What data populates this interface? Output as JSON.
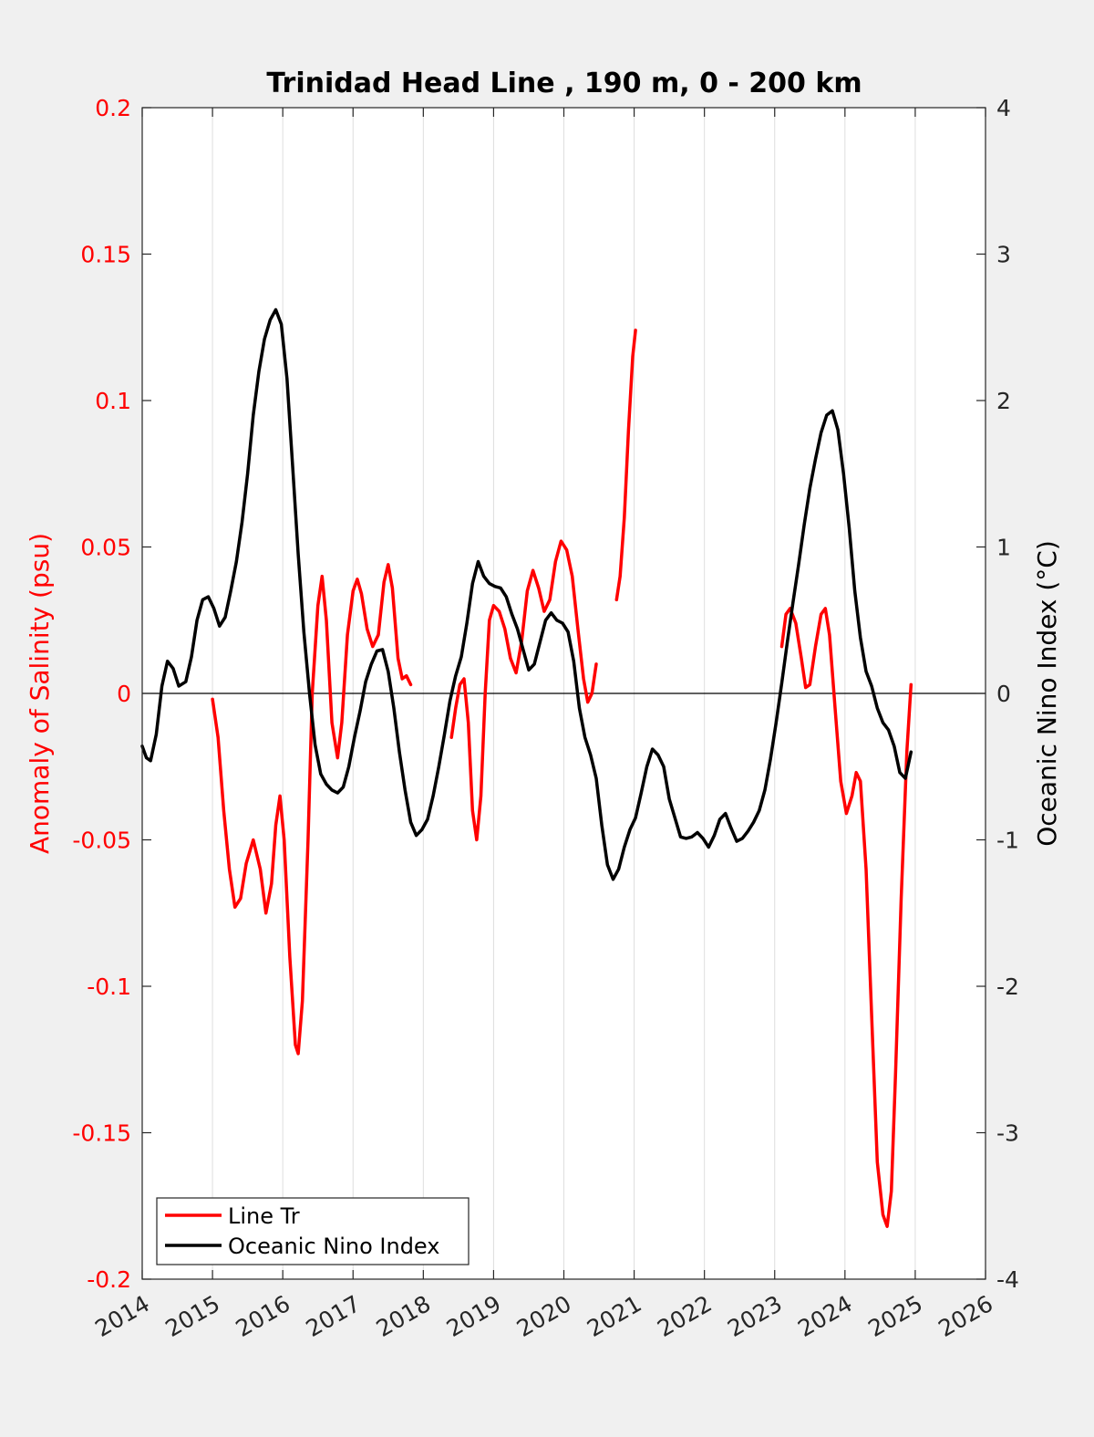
{
  "chart_data": {
    "type": "line",
    "title": "Trinidad Head Line , 190 m, 0 - 200 km",
    "ylabel_left": "Anomaly of Salinity (psu)",
    "ylabel_right": "Oceanic Nino Index (°C)",
    "xlim": [
      2014,
      2026
    ],
    "ylim_left": [
      -0.2,
      0.2
    ],
    "ylim_right": [
      -4,
      4
    ],
    "x_ticks": [
      "2014",
      "2015",
      "2016",
      "2017",
      "2018",
      "2019",
      "2020",
      "2021",
      "2022",
      "2023",
      "2024",
      "2025",
      "2026"
    ],
    "y_ticks_left": [
      "0.2",
      "0.15",
      "0.1",
      "0.05",
      "0",
      "-0.05",
      "-0.1",
      "-0.15",
      "-0.2"
    ],
    "y_ticks_right": [
      "4",
      "3",
      "2",
      "1",
      "0",
      "-1",
      "-2",
      "-3",
      "-4"
    ],
    "grid": "vertical",
    "zero_line": true,
    "legend_position": "bottom-left",
    "colors": {
      "left_axis": "#ff0000",
      "line_tr": "#ff0000",
      "oni": "#000000"
    },
    "series": [
      {
        "name": "Line Tr",
        "axis": "left",
        "color": "#ff0000",
        "segments": [
          [
            [
              2015.0,
              -0.002
            ],
            [
              2015.08,
              -0.015
            ],
            [
              2015.16,
              -0.04
            ],
            [
              2015.24,
              -0.06
            ],
            [
              2015.32,
              -0.073
            ],
            [
              2015.4,
              -0.07
            ],
            [
              2015.48,
              -0.058
            ],
            [
              2015.58,
              -0.05
            ],
            [
              2015.68,
              -0.06
            ],
            [
              2015.76,
              -0.075
            ],
            [
              2015.84,
              -0.065
            ],
            [
              2015.9,
              -0.045
            ],
            [
              2015.96,
              -0.035
            ],
            [
              2016.02,
              -0.05
            ],
            [
              2016.1,
              -0.09
            ],
            [
              2016.18,
              -0.12
            ],
            [
              2016.22,
              -0.123
            ],
            [
              2016.28,
              -0.105
            ],
            [
              2016.36,
              -0.05
            ],
            [
              2016.42,
              0.0
            ],
            [
              2016.5,
              0.03
            ],
            [
              2016.56,
              0.04
            ],
            [
              2016.62,
              0.025
            ],
            [
              2016.7,
              -0.01
            ],
            [
              2016.78,
              -0.022
            ],
            [
              2016.84,
              -0.01
            ],
            [
              2016.92,
              0.02
            ],
            [
              2017.0,
              0.035
            ],
            [
              2017.06,
              0.039
            ],
            [
              2017.12,
              0.034
            ],
            [
              2017.2,
              0.022
            ],
            [
              2017.28,
              0.016
            ],
            [
              2017.36,
              0.02
            ],
            [
              2017.44,
              0.038
            ],
            [
              2017.5,
              0.044
            ],
            [
              2017.56,
              0.036
            ],
            [
              2017.64,
              0.012
            ],
            [
              2017.7,
              0.005
            ],
            [
              2017.76,
              0.006
            ],
            [
              2017.82,
              0.003
            ]
          ],
          [
            [
              2018.4,
              -0.015
            ],
            [
              2018.46,
              -0.005
            ],
            [
              2018.52,
              0.003
            ],
            [
              2018.58,
              0.005
            ],
            [
              2018.64,
              -0.01
            ],
            [
              2018.7,
              -0.04
            ],
            [
              2018.76,
              -0.05
            ],
            [
              2018.82,
              -0.035
            ],
            [
              2018.88,
              0.0
            ],
            [
              2018.94,
              0.025
            ],
            [
              2019.0,
              0.03
            ],
            [
              2019.08,
              0.028
            ],
            [
              2019.16,
              0.022
            ],
            [
              2019.24,
              0.012
            ],
            [
              2019.32,
              0.007
            ],
            [
              2019.4,
              0.018
            ],
            [
              2019.48,
              0.035
            ],
            [
              2019.56,
              0.042
            ],
            [
              2019.64,
              0.036
            ],
            [
              2019.72,
              0.028
            ],
            [
              2019.8,
              0.032
            ],
            [
              2019.88,
              0.045
            ],
            [
              2019.96,
              0.052
            ],
            [
              2020.04,
              0.049
            ],
            [
              2020.12,
              0.04
            ],
            [
              2020.2,
              0.022
            ],
            [
              2020.28,
              0.005
            ],
            [
              2020.34,
              -0.003
            ],
            [
              2020.4,
              0.0
            ],
            [
              2020.46,
              0.01
            ]
          ],
          [
            [
              2020.75,
              0.032
            ],
            [
              2020.8,
              0.04
            ],
            [
              2020.86,
              0.06
            ],
            [
              2020.92,
              0.09
            ],
            [
              2020.98,
              0.115
            ],
            [
              2021.02,
              0.124
            ]
          ],
          [
            [
              2023.1,
              0.016
            ],
            [
              2023.16,
              0.027
            ],
            [
              2023.22,
              0.029
            ],
            [
              2023.3,
              0.024
            ],
            [
              2023.38,
              0.012
            ],
            [
              2023.44,
              0.002
            ],
            [
              2023.5,
              0.003
            ],
            [
              2023.58,
              0.016
            ],
            [
              2023.66,
              0.027
            ],
            [
              2023.72,
              0.029
            ],
            [
              2023.78,
              0.02
            ],
            [
              2023.86,
              -0.005
            ],
            [
              2023.94,
              -0.03
            ],
            [
              2024.02,
              -0.041
            ],
            [
              2024.1,
              -0.035
            ],
            [
              2024.16,
              -0.027
            ],
            [
              2024.22,
              -0.03
            ],
            [
              2024.3,
              -0.06
            ],
            [
              2024.38,
              -0.11
            ],
            [
              2024.46,
              -0.16
            ],
            [
              2024.54,
              -0.178
            ],
            [
              2024.6,
              -0.182
            ],
            [
              2024.66,
              -0.17
            ],
            [
              2024.72,
              -0.13
            ],
            [
              2024.8,
              -0.07
            ],
            [
              2024.88,
              -0.02
            ],
            [
              2024.94,
              0.003
            ]
          ]
        ]
      },
      {
        "name": "Oceanic Nino Index",
        "axis": "right",
        "color": "#000000",
        "segments": [
          [
            [
              2014.0,
              -0.36
            ],
            [
              2014.06,
              -0.44
            ],
            [
              2014.12,
              -0.46
            ],
            [
              2014.2,
              -0.28
            ],
            [
              2014.28,
              0.05
            ],
            [
              2014.36,
              0.22
            ],
            [
              2014.44,
              0.17
            ],
            [
              2014.52,
              0.05
            ],
            [
              2014.62,
              0.08
            ],
            [
              2014.7,
              0.25
            ],
            [
              2014.78,
              0.5
            ],
            [
              2014.86,
              0.64
            ],
            [
              2014.94,
              0.66
            ],
            [
              2015.02,
              0.58
            ],
            [
              2015.1,
              0.46
            ],
            [
              2015.18,
              0.52
            ],
            [
              2015.26,
              0.7
            ],
            [
              2015.34,
              0.9
            ],
            [
              2015.42,
              1.17
            ],
            [
              2015.5,
              1.5
            ],
            [
              2015.58,
              1.9
            ],
            [
              2015.66,
              2.2
            ],
            [
              2015.74,
              2.42
            ],
            [
              2015.82,
              2.55
            ],
            [
              2015.9,
              2.62
            ],
            [
              2015.98,
              2.52
            ],
            [
              2016.06,
              2.15
            ],
            [
              2016.14,
              1.55
            ],
            [
              2016.22,
              0.95
            ],
            [
              2016.3,
              0.42
            ],
            [
              2016.38,
              0.0
            ],
            [
              2016.46,
              -0.35
            ],
            [
              2016.54,
              -0.55
            ],
            [
              2016.62,
              -0.62
            ],
            [
              2016.7,
              -0.66
            ],
            [
              2016.78,
              -0.68
            ],
            [
              2016.86,
              -0.64
            ],
            [
              2016.94,
              -0.5
            ],
            [
              2017.02,
              -0.3
            ],
            [
              2017.1,
              -0.12
            ],
            [
              2017.18,
              0.08
            ],
            [
              2017.26,
              0.2
            ],
            [
              2017.34,
              0.29
            ],
            [
              2017.42,
              0.3
            ],
            [
              2017.5,
              0.15
            ],
            [
              2017.58,
              -0.1
            ],
            [
              2017.66,
              -0.4
            ],
            [
              2017.74,
              -0.66
            ],
            [
              2017.82,
              -0.88
            ],
            [
              2017.9,
              -0.97
            ],
            [
              2017.98,
              -0.93
            ],
            [
              2018.06,
              -0.86
            ],
            [
              2018.14,
              -0.7
            ],
            [
              2018.22,
              -0.5
            ],
            [
              2018.3,
              -0.28
            ],
            [
              2018.38,
              -0.05
            ],
            [
              2018.46,
              0.12
            ],
            [
              2018.54,
              0.25
            ],
            [
              2018.62,
              0.48
            ],
            [
              2018.7,
              0.75
            ],
            [
              2018.78,
              0.9
            ],
            [
              2018.86,
              0.8
            ],
            [
              2018.94,
              0.75
            ],
            [
              2019.02,
              0.73
            ],
            [
              2019.1,
              0.72
            ],
            [
              2019.18,
              0.66
            ],
            [
              2019.26,
              0.54
            ],
            [
              2019.34,
              0.44
            ],
            [
              2019.42,
              0.3
            ],
            [
              2019.5,
              0.16
            ],
            [
              2019.58,
              0.2
            ],
            [
              2019.66,
              0.35
            ],
            [
              2019.74,
              0.5
            ],
            [
              2019.82,
              0.55
            ],
            [
              2019.9,
              0.5
            ],
            [
              2019.98,
              0.48
            ],
            [
              2020.06,
              0.42
            ],
            [
              2020.14,
              0.22
            ],
            [
              2020.22,
              -0.1
            ],
            [
              2020.3,
              -0.3
            ],
            [
              2020.38,
              -0.42
            ],
            [
              2020.46,
              -0.58
            ],
            [
              2020.54,
              -0.9
            ],
            [
              2020.62,
              -1.17
            ],
            [
              2020.7,
              -1.27
            ],
            [
              2020.78,
              -1.2
            ],
            [
              2020.86,
              -1.05
            ],
            [
              2020.94,
              -0.93
            ],
            [
              2021.02,
              -0.85
            ],
            [
              2021.1,
              -0.68
            ],
            [
              2021.18,
              -0.5
            ],
            [
              2021.26,
              -0.38
            ],
            [
              2021.34,
              -0.42
            ],
            [
              2021.42,
              -0.5
            ],
            [
              2021.5,
              -0.72
            ],
            [
              2021.58,
              -0.85
            ],
            [
              2021.66,
              -0.98
            ],
            [
              2021.74,
              -0.99
            ],
            [
              2021.82,
              -0.98
            ],
            [
              2021.9,
              -0.95
            ],
            [
              2021.98,
              -0.99
            ],
            [
              2022.06,
              -1.05
            ],
            [
              2022.14,
              -0.97
            ],
            [
              2022.22,
              -0.86
            ],
            [
              2022.3,
              -0.82
            ],
            [
              2022.38,
              -0.92
            ],
            [
              2022.46,
              -1.01
            ],
            [
              2022.54,
              -0.99
            ],
            [
              2022.62,
              -0.94
            ],
            [
              2022.7,
              -0.88
            ],
            [
              2022.78,
              -0.8
            ],
            [
              2022.86,
              -0.66
            ],
            [
              2022.94,
              -0.45
            ],
            [
              2023.02,
              -0.2
            ],
            [
              2023.1,
              0.07
            ],
            [
              2023.18,
              0.35
            ],
            [
              2023.26,
              0.62
            ],
            [
              2023.34,
              0.88
            ],
            [
              2023.42,
              1.15
            ],
            [
              2023.5,
              1.4
            ],
            [
              2023.58,
              1.6
            ],
            [
              2023.66,
              1.78
            ],
            [
              2023.74,
              1.9
            ],
            [
              2023.82,
              1.93
            ],
            [
              2023.9,
              1.8
            ],
            [
              2023.98,
              1.5
            ],
            [
              2024.06,
              1.13
            ],
            [
              2024.14,
              0.7
            ],
            [
              2024.22,
              0.38
            ],
            [
              2024.3,
              0.15
            ],
            [
              2024.38,
              0.05
            ],
            [
              2024.46,
              -0.1
            ],
            [
              2024.54,
              -0.2
            ],
            [
              2024.62,
              -0.25
            ],
            [
              2024.7,
              -0.36
            ],
            [
              2024.78,
              -0.54
            ],
            [
              2024.86,
              -0.58
            ],
            [
              2024.94,
              -0.4
            ]
          ]
        ]
      }
    ]
  }
}
